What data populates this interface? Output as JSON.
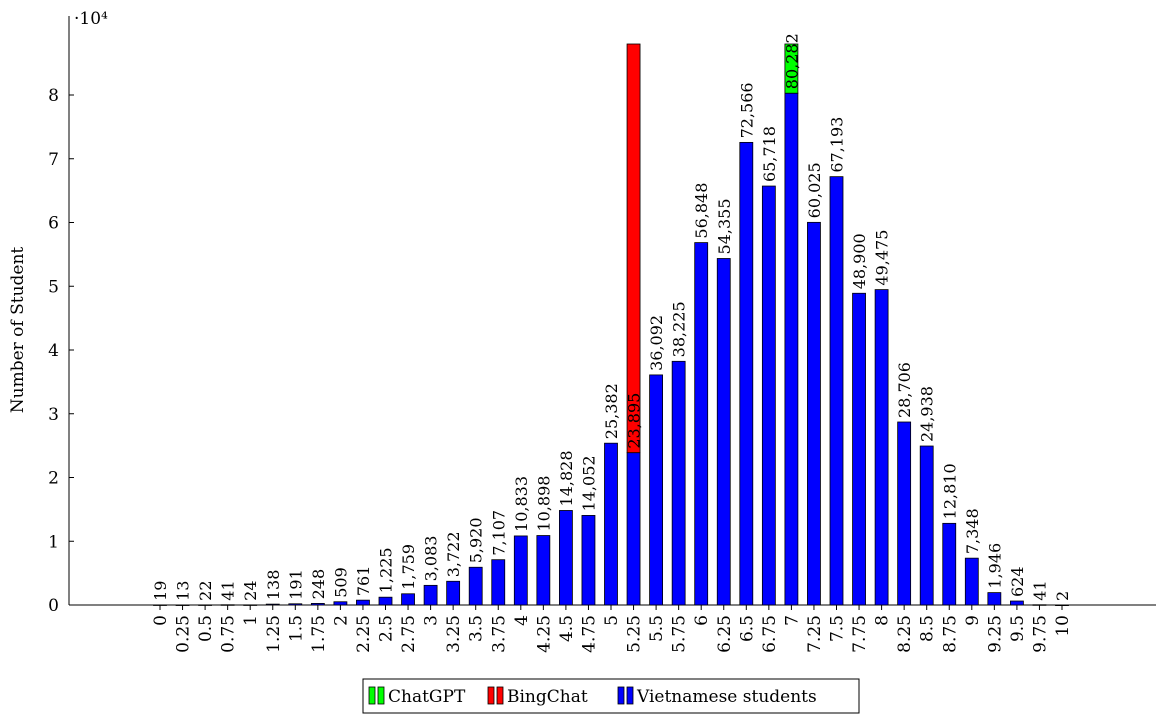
{
  "chart_data": {
    "type": "bar",
    "ylabel": "Number of Student",
    "y_multiplier_label": "·10⁴",
    "yticks": [
      0,
      1,
      2,
      3,
      4,
      5,
      6,
      7,
      8
    ],
    "ylim": [
      0,
      88000
    ],
    "categories": [
      "0",
      "0.25",
      "0.5",
      "0.75",
      "1",
      "1.25",
      "1.5",
      "1.75",
      "2",
      "2.25",
      "2.5",
      "2.75",
      "3",
      "3.25",
      "3.5",
      "3.75",
      "4",
      "4.25",
      "4.5",
      "4.75",
      "5",
      "5.25",
      "5.5",
      "5.75",
      "6",
      "6.25",
      "6.5",
      "6.75",
      "7",
      "7.25",
      "7.5",
      "7.75",
      "8",
      "8.25",
      "8.5",
      "8.75",
      "9",
      "9.25",
      "9.5",
      "9.75",
      "10"
    ],
    "series": [
      {
        "name": "Vietnamese students",
        "color": "#0000ff",
        "values": [
          19,
          13,
          22,
          41,
          24,
          138,
          191,
          248,
          509,
          761,
          1225,
          1759,
          3083,
          3722,
          5920,
          7107,
          10833,
          10898,
          14828,
          14052,
          25382,
          23895,
          36092,
          38225,
          56848,
          54355,
          72566,
          65718,
          80282,
          60025,
          67193,
          48900,
          49475,
          28706,
          24938,
          12810,
          7348,
          1946,
          624,
          41,
          2
        ],
        "labels": [
          "19",
          "13",
          "22",
          "41",
          "24",
          "138",
          "191",
          "248",
          "509",
          "761",
          "1,225",
          "1,759",
          "3,083",
          "3,722",
          "5,920",
          "7,107",
          "10,833",
          "10,898",
          "14,828",
          "14,052",
          "25,382",
          "23,895",
          "36,092",
          "38,225",
          "56,848",
          "54,355",
          "72,566",
          "65,718",
          "80,282",
          "60,025",
          "67,193",
          "48,900",
          "49,475",
          "28,706",
          "24,938",
          "12,810",
          "7,348",
          "1,946",
          "624",
          "41",
          "2"
        ]
      },
      {
        "name": "BingChat",
        "color": "#ff0000",
        "category": "5.25"
      },
      {
        "name": "ChatGPT",
        "color": "#00ff00",
        "category": "7"
      }
    ],
    "legend": [
      "ChatGPT",
      "BingChat",
      "Vietnamese students"
    ],
    "legend_position": "bottom"
  }
}
